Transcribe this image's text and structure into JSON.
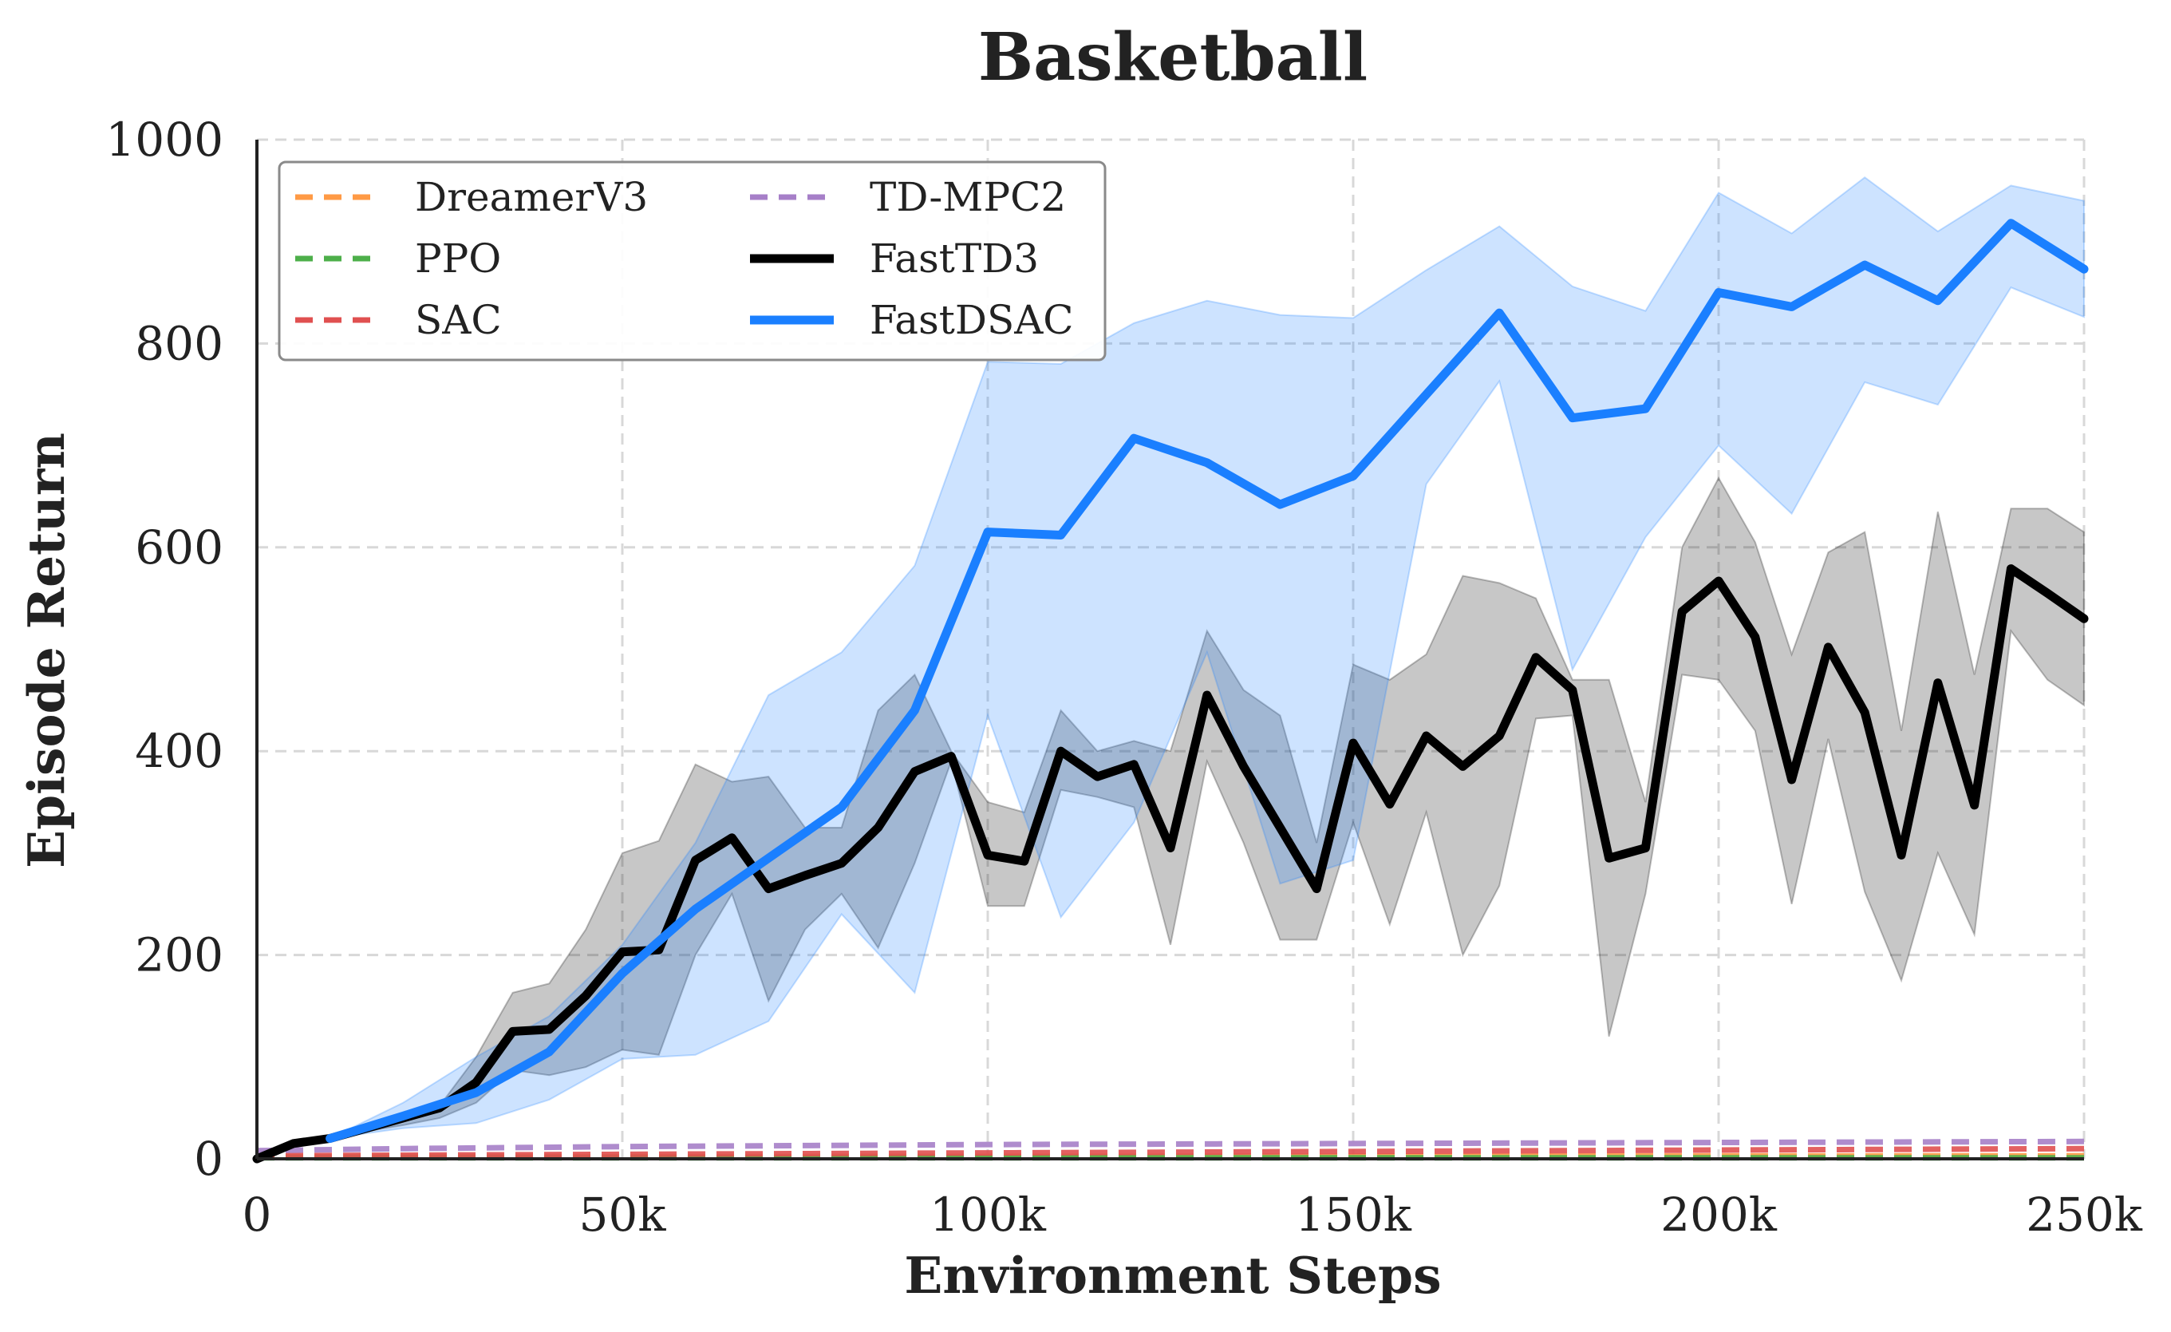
{
  "chart_data": {
    "type": "line",
    "title": "Basketball",
    "xlabel": "Environment Steps",
    "ylabel": "Episode Return",
    "xlim": [
      0,
      250000
    ],
    "ylim": [
      0,
      1000
    ],
    "xticks": [
      0,
      50000,
      100000,
      150000,
      200000,
      250000
    ],
    "xtick_labels": [
      "0",
      "50k",
      "100k",
      "150k",
      "200k",
      "250k"
    ],
    "yticks": [
      0,
      200,
      400,
      600,
      800,
      1000
    ],
    "ytick_labels": [
      "0",
      "200",
      "400",
      "600",
      "800",
      "1000"
    ],
    "grid": true,
    "legend_position": "top-left",
    "legend_columns": 2,
    "series": [
      {
        "name": "DreamerV3",
        "color": "#ff9a45",
        "style": "dashed",
        "x": [
          0,
          250000
        ],
        "y": [
          2,
          3
        ]
      },
      {
        "name": "PPO",
        "color": "#4daf4a",
        "style": "dashed",
        "x": [
          0,
          250000
        ],
        "y": [
          1,
          1
        ]
      },
      {
        "name": "SAC",
        "color": "#e05050",
        "style": "dashed",
        "x": [
          0,
          250000
        ],
        "y": [
          3,
          10
        ]
      },
      {
        "name": "TD-MPC2",
        "color": "#a67fc8",
        "style": "dashed",
        "x": [
          0,
          20000,
          50000,
          100000,
          150000,
          200000,
          250000
        ],
        "y": [
          8,
          10,
          12,
          14,
          15,
          16,
          17
        ]
      },
      {
        "name": "FastTD3",
        "color": "#000000",
        "style": "solid",
        "x": [
          0,
          5000,
          10000,
          15000,
          20000,
          25000,
          30000,
          35000,
          40000,
          45000,
          50000,
          55000,
          60000,
          65000,
          70000,
          75000,
          80000,
          85000,
          90000,
          95000,
          100000,
          105000,
          110000,
          115000,
          120000,
          125000,
          130000,
          135000,
          140000,
          145000,
          150000,
          155000,
          160000,
          165000,
          170000,
          175000,
          180000,
          185000,
          190000,
          195000,
          200000,
          205000,
          210000,
          215000,
          220000,
          225000,
          230000,
          235000,
          240000,
          245000,
          250000
        ],
        "y": [
          0,
          15,
          20,
          30,
          40,
          50,
          75,
          125,
          127,
          160,
          203,
          205,
          293,
          315,
          265,
          278,
          290,
          325,
          380,
          395,
          298,
          292,
          400,
          375,
          387,
          305,
          455,
          385,
          325,
          265,
          408,
          348,
          415,
          385,
          415,
          492,
          460,
          295,
          305,
          537,
          567,
          512,
          372,
          502,
          438,
          298,
          467,
          347,
          579,
          555,
          530
        ],
        "band_upper": [
          0,
          15,
          20,
          30,
          40,
          52,
          100,
          163,
          172,
          225,
          300,
          312,
          387,
          370,
          375,
          325,
          325,
          440,
          475,
          400,
          350,
          340,
          440,
          400,
          410,
          400,
          518,
          460,
          435,
          310,
          485,
          470,
          495,
          572,
          565,
          550,
          470,
          470,
          350,
          600,
          668,
          605,
          495,
          595,
          615,
          420,
          635,
          475,
          638,
          638,
          615
        ],
        "band_lower": [
          0,
          15,
          20,
          27,
          33,
          40,
          55,
          87,
          82,
          90,
          107,
          102,
          200,
          260,
          155,
          225,
          260,
          207,
          290,
          390,
          248,
          248,
          362,
          355,
          345,
          210,
          390,
          310,
          215,
          215,
          330,
          230,
          340,
          200,
          268,
          432,
          435,
          120,
          260,
          475,
          470,
          420,
          250,
          412,
          262,
          175,
          300,
          220,
          518,
          470,
          445
        ]
      },
      {
        "name": "FastDSAC",
        "color": "#1a7fff",
        "style": "solid",
        "x": [
          10000,
          20000,
          30000,
          40000,
          50000,
          60000,
          70000,
          80000,
          90000,
          100000,
          110000,
          120000,
          130000,
          140000,
          150000,
          160000,
          170000,
          180000,
          190000,
          200000,
          210000,
          220000,
          230000,
          240000,
          250000
        ],
        "y": [
          20,
          42,
          65,
          105,
          182,
          245,
          295,
          345,
          440,
          615,
          612,
          707,
          683,
          642,
          670,
          750,
          830,
          727,
          736,
          850,
          836,
          877,
          842,
          918,
          873
        ],
        "band_upper": [
          20,
          55,
          100,
          140,
          210,
          310,
          455,
          497,
          582,
          782,
          780,
          820,
          842,
          828,
          825,
          872,
          915,
          856,
          832,
          948,
          908,
          963,
          910,
          955,
          940
        ],
        "band_lower": [
          20,
          30,
          35,
          58,
          98,
          102,
          135,
          240,
          163,
          435,
          237,
          330,
          497,
          270,
          293,
          662,
          763,
          480,
          610,
          700,
          633,
          762,
          740,
          855,
          826
        ]
      }
    ]
  }
}
